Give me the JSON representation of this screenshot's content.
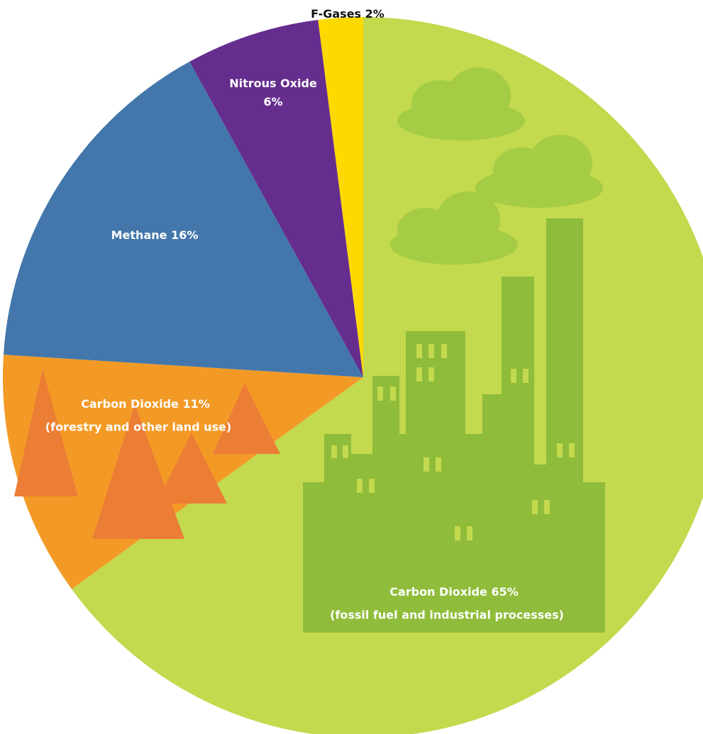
{
  "chart_data": {
    "type": "pie",
    "categories": [
      "Carbon Dioxide",
      "Carbon Dioxide",
      "Methane",
      "Nitrous Oxide",
      "F-Gases"
    ],
    "details": [
      "(fossil fuel and industrial processes)",
      "(forestry and other land use)",
      null,
      null,
      null
    ],
    "values": [
      65,
      11,
      16,
      6,
      2
    ],
    "value_labels": [
      "65%",
      "11%",
      "16%",
      "6%",
      "2%"
    ],
    "colors": [
      "#c3d94e",
      "#f39a26",
      "#4377ab",
      "#652d8e",
      "#fdd900"
    ]
  }
}
